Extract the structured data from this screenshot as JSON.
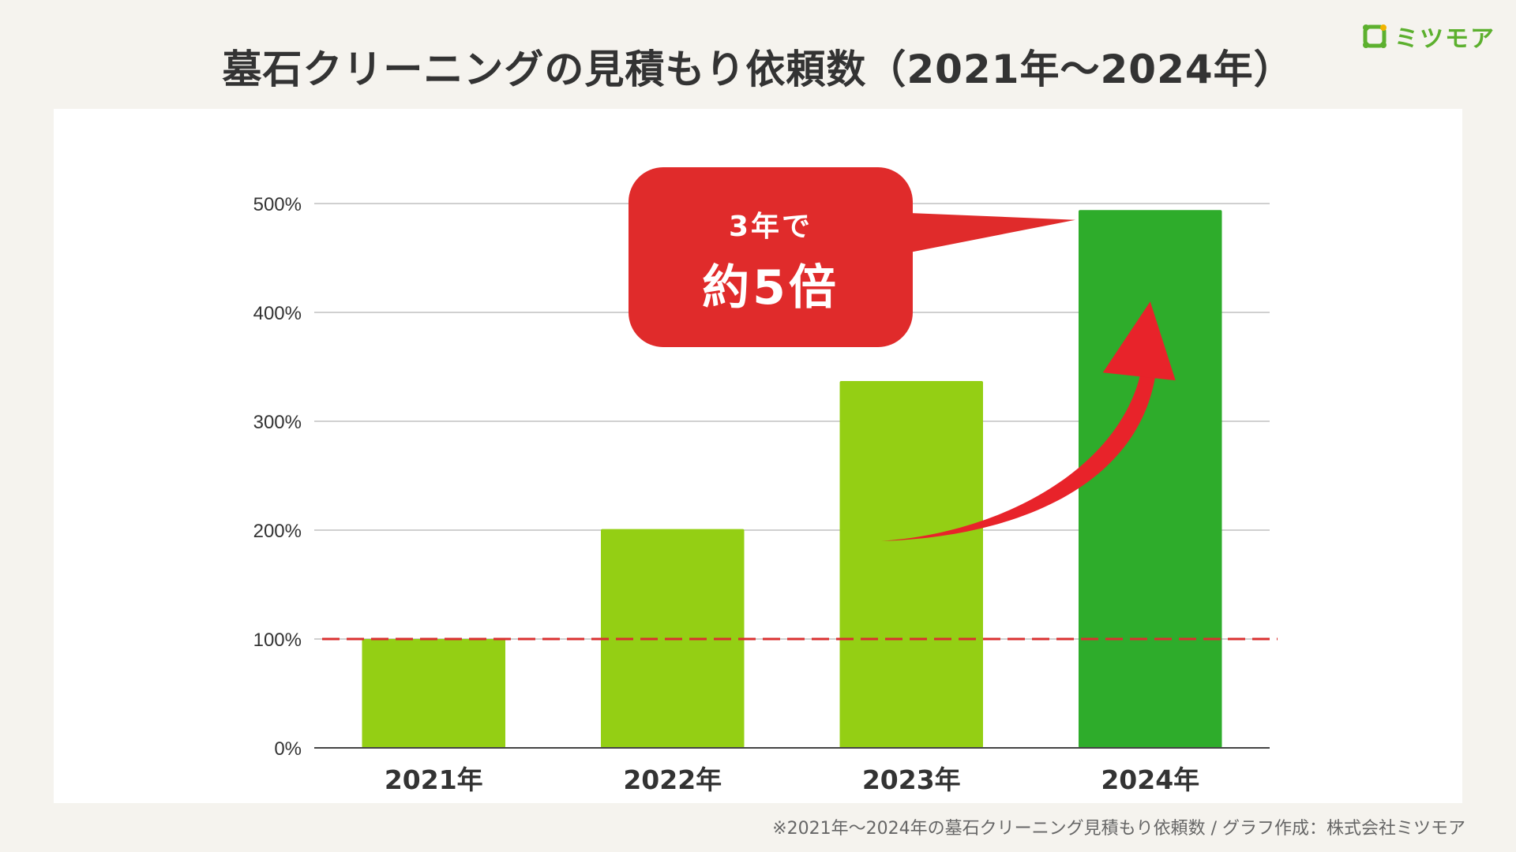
{
  "title": "墓石クリーニングの見積もり依頼数（2021年〜2024年）",
  "brand": {
    "name": "ミツモア",
    "logo_icon": "mitsumore-logo-icon",
    "color": "#5cb02e"
  },
  "callout": {
    "line1": "3年で",
    "line2": "約5倍",
    "color": "#e02b2b"
  },
  "footnote": "※2021年〜2024年の墓石クリーニング見積もり依頼数 / グラフ作成：株式会社ミツモア",
  "chart_data": {
    "type": "bar",
    "categories": [
      "2021年",
      "2022年",
      "2023年",
      "2024年"
    ],
    "values": [
      100,
      201,
      337,
      494
    ],
    "value_unit": "%",
    "ylim": [
      0,
      500
    ],
    "yticks": [
      0,
      100,
      200,
      300,
      400,
      500
    ],
    "ytick_labels": [
      "0%",
      "100%",
      "200%",
      "300%",
      "400%",
      "500%"
    ],
    "grid": true,
    "reference_line": {
      "value": 100,
      "style": "dashed",
      "color": "#d93030"
    },
    "bar_colors": [
      "#94cf14",
      "#94cf14",
      "#94cf14",
      "#2eac2b"
    ],
    "arrow": {
      "from_category": "2023年",
      "to_category": "2024年",
      "color": "#e8232a"
    }
  }
}
